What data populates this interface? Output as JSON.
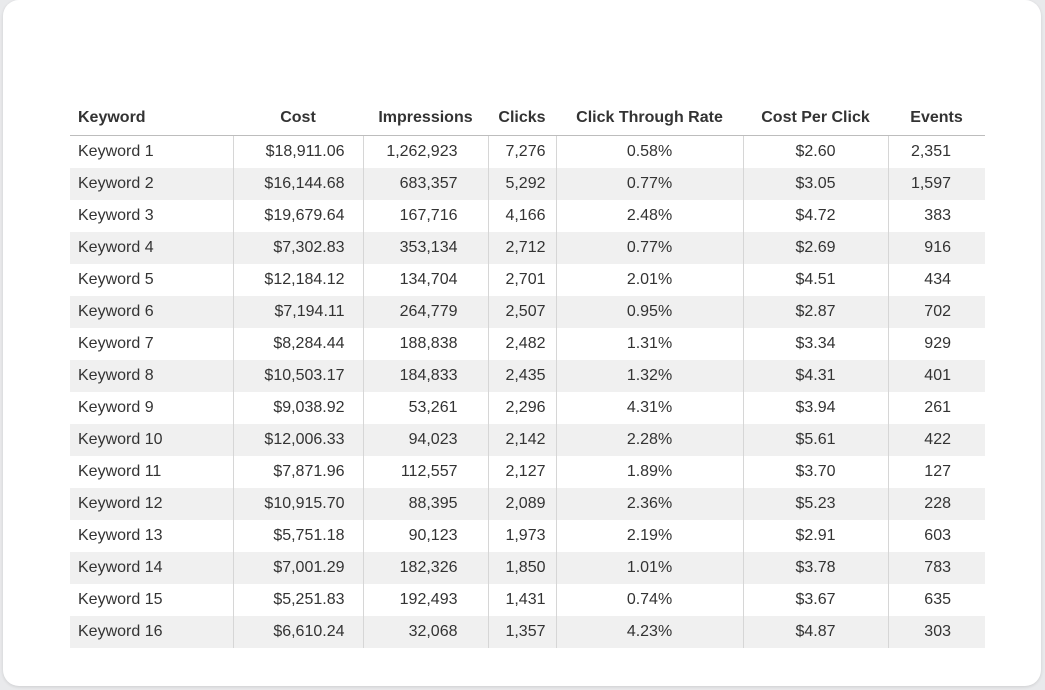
{
  "table": {
    "headers": [
      "Keyword",
      "Cost",
      "Impressions",
      "Clicks",
      "Click Through Rate",
      "Cost Per Click",
      "Events"
    ],
    "rows": [
      {
        "keyword": "Keyword 1",
        "cost": "$18,911.06",
        "impressions": "1,262,923",
        "clicks": "7,276",
        "ctr": "0.58%",
        "cpc": "$2.60",
        "events": "2,351"
      },
      {
        "keyword": "Keyword 2",
        "cost": "$16,144.68",
        "impressions": "683,357",
        "clicks": "5,292",
        "ctr": "0.77%",
        "cpc": "$3.05",
        "events": "1,597"
      },
      {
        "keyword": "Keyword 3",
        "cost": "$19,679.64",
        "impressions": "167,716",
        "clicks": "4,166",
        "ctr": "2.48%",
        "cpc": "$4.72",
        "events": "383"
      },
      {
        "keyword": "Keyword 4",
        "cost": "$7,302.83",
        "impressions": "353,134",
        "clicks": "2,712",
        "ctr": "0.77%",
        "cpc": "$2.69",
        "events": "916"
      },
      {
        "keyword": "Keyword 5",
        "cost": "$12,184.12",
        "impressions": "134,704",
        "clicks": "2,701",
        "ctr": "2.01%",
        "cpc": "$4.51",
        "events": "434"
      },
      {
        "keyword": "Keyword 6",
        "cost": "$7,194.11",
        "impressions": "264,779",
        "clicks": "2,507",
        "ctr": "0.95%",
        "cpc": "$2.87",
        "events": "702"
      },
      {
        "keyword": "Keyword 7",
        "cost": "$8,284.44",
        "impressions": "188,838",
        "clicks": "2,482",
        "ctr": "1.31%",
        "cpc": "$3.34",
        "events": "929"
      },
      {
        "keyword": "Keyword 8",
        "cost": "$10,503.17",
        "impressions": "184,833",
        "clicks": "2,435",
        "ctr": "1.32%",
        "cpc": "$4.31",
        "events": "401"
      },
      {
        "keyword": "Keyword 9",
        "cost": "$9,038.92",
        "impressions": "53,261",
        "clicks": "2,296",
        "ctr": "4.31%",
        "cpc": "$3.94",
        "events": "261"
      },
      {
        "keyword": "Keyword 10",
        "cost": "$12,006.33",
        "impressions": "94,023",
        "clicks": "2,142",
        "ctr": "2.28%",
        "cpc": "$5.61",
        "events": "422"
      },
      {
        "keyword": "Keyword 11",
        "cost": "$7,871.96",
        "impressions": "112,557",
        "clicks": "2,127",
        "ctr": "1.89%",
        "cpc": "$3.70",
        "events": "127"
      },
      {
        "keyword": "Keyword 12",
        "cost": "$10,915.70",
        "impressions": "88,395",
        "clicks": "2,089",
        "ctr": "2.36%",
        "cpc": "$5.23",
        "events": "228"
      },
      {
        "keyword": "Keyword 13",
        "cost": "$5,751.18",
        "impressions": "90,123",
        "clicks": "1,973",
        "ctr": "2.19%",
        "cpc": "$2.91",
        "events": "603"
      },
      {
        "keyword": "Keyword 14",
        "cost": "$7,001.29",
        "impressions": "182,326",
        "clicks": "1,850",
        "ctr": "1.01%",
        "cpc": "$3.78",
        "events": "783"
      },
      {
        "keyword": "Keyword 15",
        "cost": "$5,251.83",
        "impressions": "192,493",
        "clicks": "1,431",
        "ctr": "0.74%",
        "cpc": "$3.67",
        "events": "635"
      },
      {
        "keyword": "Keyword 16",
        "cost": "$6,610.24",
        "impressions": "32,068",
        "clicks": "1,357",
        "ctr": "4.23%",
        "cpc": "$4.87",
        "events": "303"
      }
    ]
  },
  "colors": {
    "card_background": "#ffffff",
    "page_background": "#e9eaec",
    "alt_row": "#f0f0f0",
    "header_rule": "#bdbdbd"
  }
}
